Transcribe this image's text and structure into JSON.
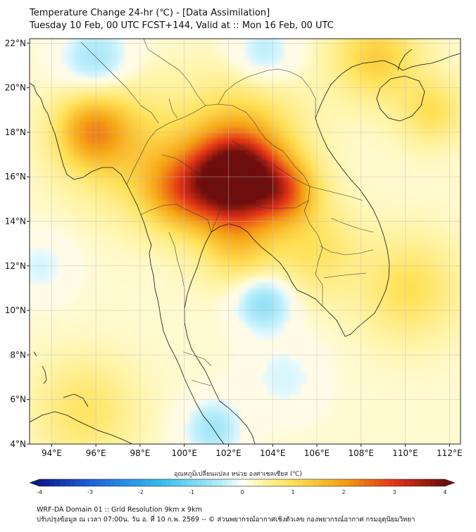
{
  "header": {
    "title_line1": "Temperature Change 24-hr (℃) - [Data Assimilation]",
    "title_line2": "Tuesday 10 Feb, 00 UTC FCST+144, Valid at :: Mon 16 Feb, 00 UTC"
  },
  "map": {
    "lon_range": [
      93,
      112.5
    ],
    "lat_range": [
      4,
      22.2
    ],
    "lat_labels": [
      "22°N",
      "20°N",
      "18°N",
      "16°N",
      "14°N",
      "12°N",
      "10°N",
      "8°N",
      "6°N",
      "4°N"
    ],
    "lat_values": [
      22,
      20,
      18,
      16,
      14,
      12,
      10,
      8,
      6,
      4
    ],
    "lon_labels": [
      "94°E",
      "96°E",
      "98°E",
      "100°E",
      "102°E",
      "104°E",
      "106°E",
      "108°E",
      "110°E",
      "112°E"
    ],
    "lon_values": [
      94,
      96,
      98,
      100,
      102,
      104,
      106,
      108,
      110,
      112
    ],
    "hotspots": [
      {
        "lon": 102.6,
        "lat": 15.9,
        "value": 3.0,
        "radius_deg": 1.3
      },
      {
        "lon": 101.3,
        "lat": 15.7,
        "value": 1.6,
        "radius_deg": 1.4
      },
      {
        "lon": 104.6,
        "lat": 15.3,
        "value": 1.7,
        "radius_deg": 1.0
      },
      {
        "lon": 102.5,
        "lat": 17.6,
        "value": 1.2,
        "radius_deg": 1.8
      },
      {
        "lon": 99.6,
        "lat": 15.3,
        "value": 1.3,
        "radius_deg": 1.2
      },
      {
        "lon": 95.8,
        "lat": 18.1,
        "value": 1.5,
        "radius_deg": 1.1
      },
      {
        "lon": 97.3,
        "lat": 17.4,
        "value": 0.9,
        "radius_deg": 1.8
      },
      {
        "lon": 102.5,
        "lat": 13.0,
        "value": 1.0,
        "radius_deg": 1.2
      },
      {
        "lon": 108.7,
        "lat": 21.4,
        "value": 1.1,
        "radius_deg": 1.3
      },
      {
        "lon": 111.2,
        "lat": 19.0,
        "value": 0.8,
        "radius_deg": 1.0
      },
      {
        "lon": 110.2,
        "lat": 11.0,
        "value": 0.8,
        "radius_deg": 1.5
      },
      {
        "lon": 105.9,
        "lat": 12.7,
        "value": 0.7,
        "radius_deg": 1.4
      },
      {
        "lon": 95.5,
        "lat": 5.5,
        "value": 0.7,
        "radius_deg": 1.5
      },
      {
        "lon": 103.6,
        "lat": 10.4,
        "value": -1.0,
        "radius_deg": 0.9
      },
      {
        "lon": 96.0,
        "lat": 21.3,
        "value": -0.8,
        "radius_deg": 1.1
      },
      {
        "lon": 103.6,
        "lat": 21.6,
        "value": -0.6,
        "radius_deg": 1.0
      },
      {
        "lon": 101.3,
        "lat": 4.7,
        "value": -0.8,
        "radius_deg": 0.9
      },
      {
        "lon": 104.5,
        "lat": 7.0,
        "value": -0.4,
        "radius_deg": 1.2
      },
      {
        "lon": 93.5,
        "lat": 12.0,
        "value": -0.4,
        "radius_deg": 1.0
      }
    ]
  },
  "colorbar": {
    "title": "อุณหภูมิเปลี่ยนแปลง หน่วย องศาเซลเซียส (℃)",
    "min": -4,
    "max": 4,
    "step": 0.1,
    "tick_labels": [
      "-4",
      "-3",
      "-2",
      "-1",
      "0",
      "1",
      "2",
      "3",
      "4"
    ],
    "tick_values": [
      -4,
      -3,
      -2,
      -1,
      0,
      1,
      2,
      3,
      4
    ],
    "colors": {
      "deep_blue": "#0a1a8c",
      "blue": "#1e5fd8",
      "cyan": "#33bdf0",
      "light_cyan": "#bff0fb",
      "white": "#ffffff",
      "pale_yellow": "#fff6b0",
      "yellow": "#ffe055",
      "orange": "#f5a012",
      "red": "#e53217",
      "dark_red": "#6e0e0a"
    }
  },
  "footer": {
    "line1": "WRF-DA Domain 01 :: Grid Resolution 9km x 9km",
    "line2": "ปรับปรุงข้อมูล ณ เวลา 07:00น. วัน อ. ที่ 10 ก.พ. 2569 -- © ส่วนพยากรณ์อากาศเชิงตัวเลข กองพยากรณ์อากาศ กรมอุตุนิยมวิทยา"
  }
}
